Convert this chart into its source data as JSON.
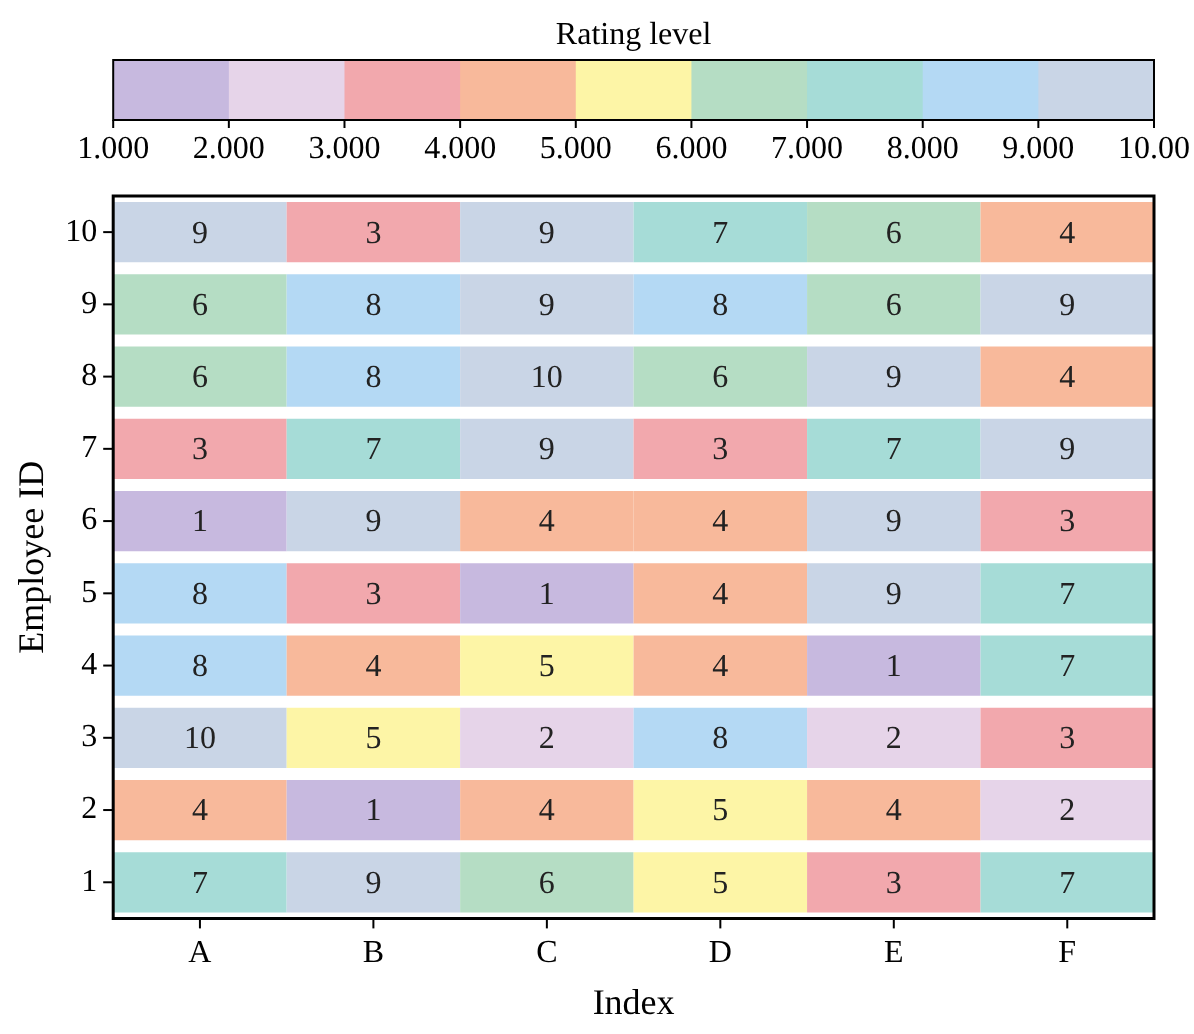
{
  "chart_data": {
    "type": "heatmap",
    "xlabel": "Index",
    "ylabel": "Employee ID",
    "clabel": "Rating level",
    "categories": [
      "A",
      "B",
      "C",
      "D",
      "E",
      "F"
    ],
    "y_categories": [
      "10",
      "9",
      "8",
      "7",
      "6",
      "5",
      "4",
      "3",
      "2",
      "1"
    ],
    "cells": [
      [
        9,
        3,
        9,
        7,
        6,
        4
      ],
      [
        6,
        8,
        9,
        8,
        6,
        9
      ],
      [
        6,
        8,
        10,
        6,
        9,
        4
      ],
      [
        3,
        7,
        9,
        3,
        7,
        9
      ],
      [
        1,
        9,
        4,
        4,
        9,
        3
      ],
      [
        8,
        3,
        1,
        4,
        9,
        7
      ],
      [
        8,
        4,
        5,
        4,
        1,
        7
      ],
      [
        10,
        5,
        2,
        8,
        2,
        3
      ],
      [
        4,
        1,
        4,
        5,
        4,
        2
      ],
      [
        7,
        9,
        6,
        5,
        3,
        7
      ]
    ],
    "data_labels": true,
    "clim": [
      1,
      10
    ],
    "cticks": [
      {
        "value": 1,
        "label": "1.000"
      },
      {
        "value": 2,
        "label": "2.000"
      },
      {
        "value": 3,
        "label": "3.000"
      },
      {
        "value": 4,
        "label": "4.000"
      },
      {
        "value": 5,
        "label": "5.000"
      },
      {
        "value": 6,
        "label": "6.000"
      },
      {
        "value": 7,
        "label": "7.000"
      },
      {
        "value": 8,
        "label": "8.000"
      },
      {
        "value": 9,
        "label": "9.000"
      },
      {
        "value": 10,
        "label": "10.00"
      }
    ],
    "colors": [
      "#c7b9df",
      "#e6d4e9",
      "#f2a8ad",
      "#f8b99b",
      "#fdf5a6",
      "#b5ddc4",
      "#a6dcd7",
      "#b4d9f4",
      "#c9d5e6"
    ],
    "grid": false
  }
}
